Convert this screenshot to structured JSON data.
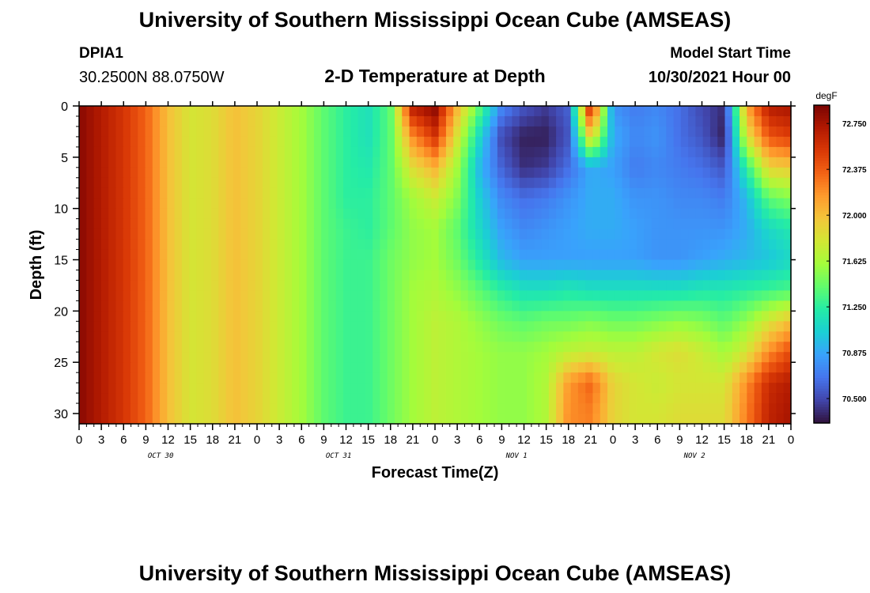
{
  "header": {
    "title": "University of Southern Mississippi Ocean Cube (AMSEAS)",
    "station": "DPIA1",
    "coordinates": "30.2500N  88.0750W",
    "subtitle": "2-D Temperature at Depth",
    "start_label": "Model Start Time",
    "start_value": "10/30/2021 Hour 00"
  },
  "footer": {
    "title_repeat": "University of Southern Mississippi Ocean Cube (AMSEAS)"
  },
  "chart_data": {
    "type": "heatmap",
    "title": "2-D Temperature at Depth",
    "xlabel": "Forecast Time(Z)",
    "ylabel": "Depth (ft)",
    "x_range_hours": [
      0,
      96
    ],
    "x_tick_step_hours": 3,
    "x_tick_labels": [
      "0",
      "3",
      "6",
      "9",
      "12",
      "15",
      "18",
      "21",
      "0",
      "3",
      "6",
      "9",
      "12",
      "15",
      "18",
      "21",
      "0",
      "3",
      "6",
      "9",
      "12",
      "15",
      "18",
      "21",
      "0",
      "3",
      "6",
      "9",
      "12",
      "15",
      "18",
      "21",
      "0"
    ],
    "day_labels": [
      {
        "text": "OCT 30",
        "hour": 11
      },
      {
        "text": "OCT 31",
        "hour": 35
      },
      {
        "text": "NOV 1",
        "hour": 59
      },
      {
        "text": "NOV 2",
        "hour": 83
      }
    ],
    "y_range_ft": [
      0,
      31
    ],
    "y_ticks": [
      0,
      5,
      10,
      15,
      20,
      25,
      30
    ],
    "colorbar": {
      "unit": "degF",
      "range": [
        70.3,
        72.9
      ],
      "ticks": [
        "72.750",
        "72.375",
        "72.000",
        "71.625",
        "71.250",
        "70.875",
        "70.500"
      ],
      "tick_values": [
        72.75,
        72.375,
        72.0,
        71.625,
        71.25,
        70.875,
        70.5
      ],
      "colormap": [
        "#30123b",
        "#4145ab",
        "#4675ed",
        "#39a2fc",
        "#1bcfd4",
        "#24eca6",
        "#61fc6c",
        "#a4fc3b",
        "#d1e834",
        "#f3c63a",
        "#fe9b2d",
        "#f36315",
        "#d93806",
        "#b11901",
        "#7a0403"
      ]
    },
    "anchor_depths_ft": [
      0,
      3,
      6,
      9,
      12,
      15,
      18,
      21,
      24,
      27,
      30
    ],
    "anchor_times_hours": [
      0,
      3,
      6,
      9,
      12,
      15,
      18,
      21,
      24,
      27,
      30,
      33,
      36,
      39,
      42,
      45,
      48,
      51,
      54,
      57,
      60,
      63,
      66,
      69,
      72,
      75,
      78,
      81,
      84,
      87,
      90,
      93,
      96
    ],
    "temperature_degF": [
      [
        72.85,
        72.7,
        72.55,
        72.35,
        72.0,
        71.8,
        71.85,
        72.0,
        71.9,
        71.75,
        71.6,
        71.4,
        71.25,
        71.15,
        71.4,
        72.7,
        72.85,
        72.05,
        71.4,
        70.75,
        70.55,
        70.45,
        70.6,
        72.7,
        70.8,
        70.7,
        70.75,
        70.65,
        70.5,
        70.4,
        72.1,
        72.7,
        72.75
      ],
      [
        72.85,
        72.7,
        72.55,
        72.35,
        72.0,
        71.8,
        71.85,
        72.0,
        71.9,
        71.75,
        71.6,
        71.4,
        71.25,
        71.15,
        71.4,
        72.2,
        72.55,
        71.8,
        71.1,
        70.5,
        70.35,
        70.35,
        70.55,
        71.95,
        70.9,
        70.75,
        70.8,
        70.65,
        70.55,
        70.35,
        71.8,
        72.4,
        72.5
      ],
      [
        72.85,
        72.7,
        72.55,
        72.35,
        72.0,
        71.8,
        71.85,
        72.0,
        71.9,
        71.75,
        71.6,
        71.4,
        71.25,
        71.2,
        71.4,
        71.85,
        72.05,
        71.6,
        70.95,
        70.6,
        70.4,
        70.45,
        70.65,
        70.9,
        70.85,
        70.7,
        70.75,
        70.7,
        70.65,
        70.55,
        71.25,
        71.9,
        71.95
      ],
      [
        72.85,
        72.7,
        72.55,
        72.35,
        72.0,
        71.8,
        71.85,
        72.0,
        71.9,
        71.75,
        71.6,
        71.4,
        71.25,
        71.25,
        71.4,
        71.6,
        71.75,
        71.5,
        71.05,
        70.75,
        70.65,
        70.7,
        70.8,
        70.9,
        70.9,
        70.8,
        70.8,
        70.75,
        70.75,
        70.7,
        70.95,
        71.4,
        71.5
      ],
      [
        72.85,
        72.7,
        72.55,
        72.35,
        72.0,
        71.8,
        71.85,
        72.0,
        71.9,
        71.75,
        71.6,
        71.4,
        71.3,
        71.25,
        71.4,
        71.55,
        71.6,
        71.4,
        71.1,
        70.85,
        70.75,
        70.8,
        70.85,
        70.9,
        70.9,
        70.85,
        70.8,
        70.8,
        70.8,
        70.8,
        70.9,
        71.1,
        71.2
      ],
      [
        72.85,
        72.7,
        72.55,
        72.35,
        72.0,
        71.8,
        71.85,
        72.0,
        71.9,
        71.75,
        71.6,
        71.4,
        71.3,
        71.3,
        71.45,
        71.55,
        71.6,
        71.45,
        71.2,
        70.95,
        70.85,
        70.85,
        70.85,
        70.85,
        70.85,
        70.85,
        70.8,
        70.8,
        70.85,
        70.9,
        70.95,
        71.0,
        71.1
      ],
      [
        72.85,
        72.7,
        72.55,
        72.35,
        72.0,
        71.8,
        71.85,
        72.0,
        71.9,
        71.75,
        71.6,
        71.4,
        71.3,
        71.3,
        71.45,
        71.6,
        71.65,
        71.55,
        71.4,
        71.25,
        71.15,
        71.15,
        71.2,
        71.15,
        71.15,
        71.15,
        71.15,
        71.15,
        71.2,
        71.2,
        71.25,
        71.3,
        71.35
      ],
      [
        72.85,
        72.7,
        72.55,
        72.35,
        72.0,
        71.8,
        71.85,
        72.0,
        71.9,
        71.75,
        71.6,
        71.4,
        71.3,
        71.3,
        71.45,
        71.6,
        71.7,
        71.65,
        71.55,
        71.45,
        71.4,
        71.45,
        71.45,
        71.5,
        71.45,
        71.45,
        71.5,
        71.55,
        71.5,
        71.4,
        71.55,
        71.8,
        72.0
      ],
      [
        72.85,
        72.7,
        72.55,
        72.35,
        72.0,
        71.8,
        71.85,
        72.0,
        71.9,
        71.75,
        71.6,
        71.4,
        71.3,
        71.3,
        71.45,
        71.6,
        71.7,
        71.65,
        71.6,
        71.55,
        71.55,
        71.6,
        71.7,
        71.75,
        71.7,
        71.7,
        71.8,
        71.85,
        71.75,
        71.6,
        71.8,
        72.2,
        72.45
      ],
      [
        72.85,
        72.7,
        72.55,
        72.35,
        72.0,
        71.8,
        71.85,
        72.0,
        71.9,
        71.75,
        71.6,
        71.4,
        71.3,
        71.3,
        71.45,
        71.6,
        71.7,
        71.65,
        71.6,
        71.55,
        71.55,
        71.65,
        72.15,
        72.35,
        71.9,
        71.8,
        71.75,
        71.8,
        71.8,
        71.8,
        72.2,
        72.6,
        72.7
      ],
      [
        72.85,
        72.7,
        72.55,
        72.35,
        72.0,
        71.8,
        71.85,
        72.0,
        71.9,
        71.75,
        71.6,
        71.4,
        71.3,
        71.3,
        71.45,
        71.6,
        71.7,
        71.65,
        71.6,
        71.55,
        71.55,
        71.65,
        72.2,
        72.25,
        71.9,
        71.8,
        71.8,
        71.85,
        71.85,
        71.85,
        72.25,
        72.65,
        72.75
      ]
    ]
  }
}
